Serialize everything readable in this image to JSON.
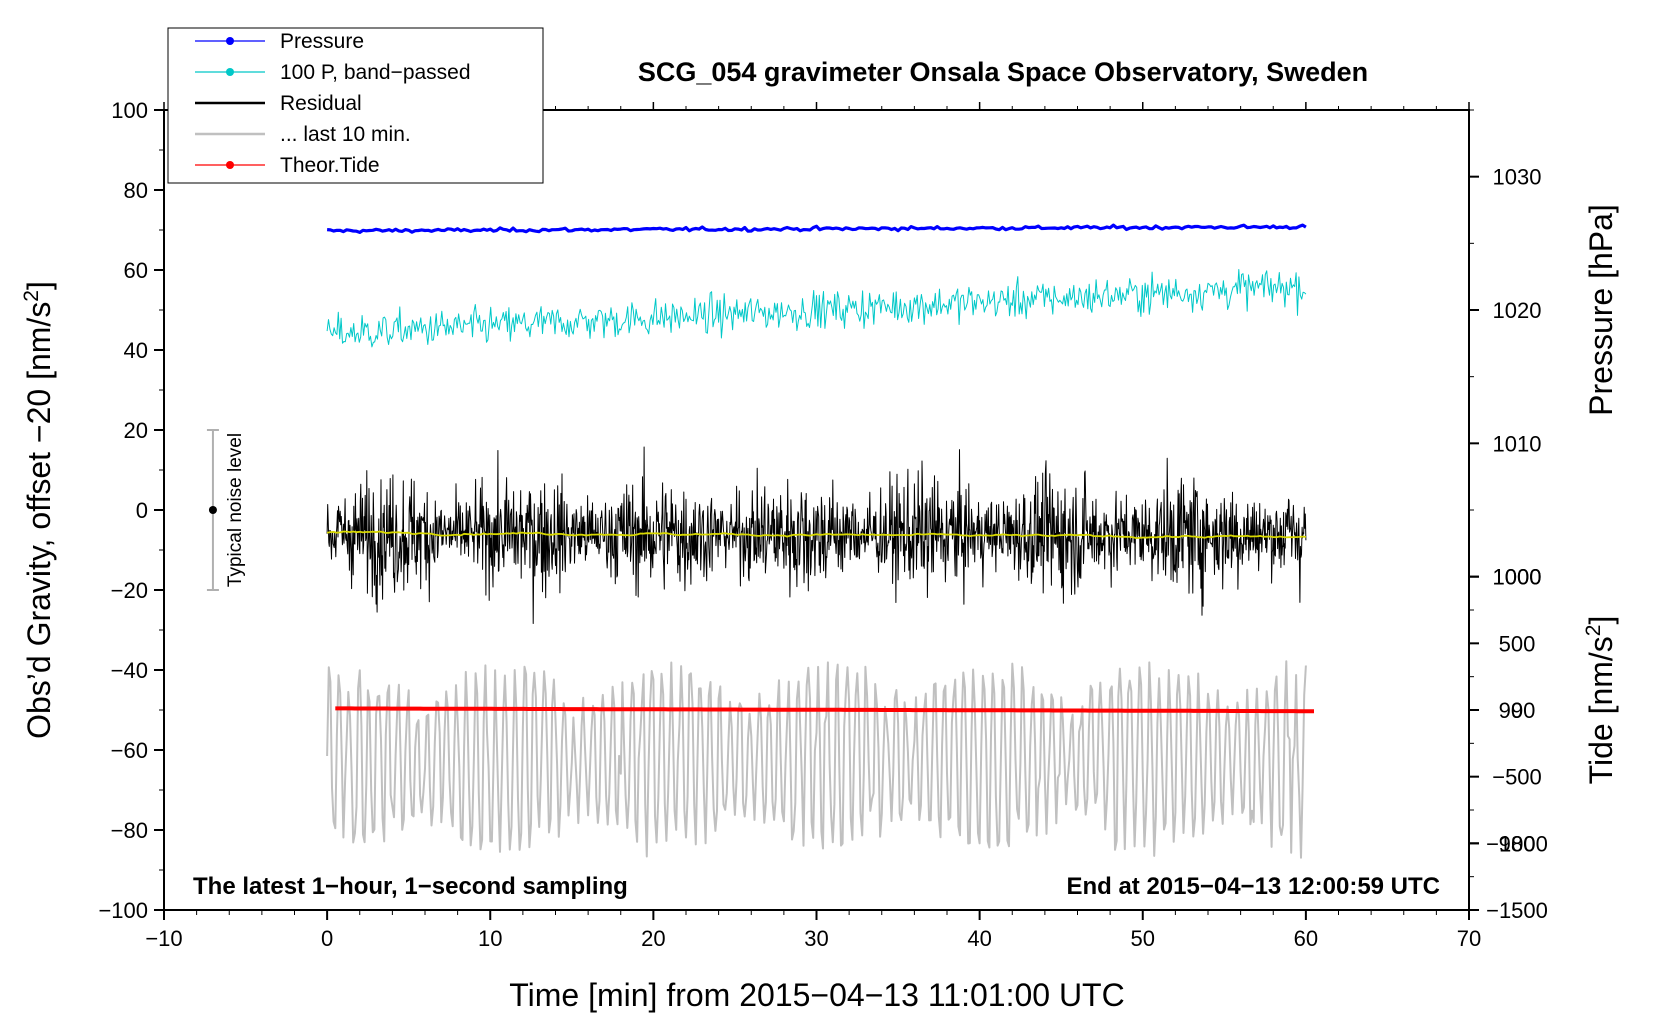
{
  "chart_data": {
    "type": "line",
    "title": "SCG_054 gravimeter Onsala Space Observatory, Sweden",
    "xlabel": "Time [min] from 2015−04−13 11:01:00 UTC",
    "ylabel_left": "Obs’d Gravity, offset −20 [nm/s",
    "ylabel_left_sup": "2",
    "ylabel_left_end": "]",
    "ylabel_pressure": "Pressure [hPa]",
    "ylabel_tide": "Tide [nm/s",
    "ylabel_tide_sup": "2",
    "ylabel_tide_end": "]",
    "xlim": [
      -10,
      70
    ],
    "ylim": [
      -100,
      100
    ],
    "x_ticks": [
      "−10",
      "0",
      "10",
      "20",
      "30",
      "40",
      "50",
      "60",
      "70"
    ],
    "x_tick_values": [
      -10,
      0,
      10,
      20,
      30,
      40,
      50,
      60,
      70
    ],
    "y_ticks": [
      "100",
      "80",
      "60",
      "40",
      "20",
      "0",
      "−20",
      "−40",
      "−60",
      "−80",
      "−100"
    ],
    "y_tick_values": [
      100,
      80,
      60,
      40,
      20,
      0,
      -20,
      -40,
      -60,
      -80,
      -100
    ],
    "pressure_ticks": [
      "1030",
      "1020",
      "1010",
      "1000",
      "990",
      "980"
    ],
    "pressure_tick_values": [
      1030,
      1020,
      1010,
      1000,
      990,
      980
    ],
    "pressure_axis_map": {
      "hpa_at_y100": 1035,
      "hpa_per_unit_y": 0.3
    },
    "tide_ticks": [
      "1000",
      "500",
      "0",
      "−500",
      "−1000",
      "−1500"
    ],
    "tide_tick_values": [
      1000,
      500,
      0,
      -500,
      -1000,
      -1500
    ],
    "tide_axis_map": {
      "tide_at_y100": 4500,
      "tide_per_unit_y": 30
    },
    "legend": [
      {
        "label": "Pressure",
        "color": "#0000ff",
        "marker": true
      },
      {
        "label": "100 P, band−passed",
        "color": "#00c8c8",
        "marker": true
      },
      {
        "label": "Residual",
        "color": "#000000",
        "marker": false
      },
      {
        "label": "... last 10 min.",
        "color": "#c0c0c0",
        "marker": false
      },
      {
        "label": "Theor.Tide",
        "color": "#ff0000",
        "marker": true
      }
    ],
    "annotations": {
      "left": "The latest 1−hour, 1−second sampling",
      "right": "End at 2015−04−13 12:00:59 UTC"
    },
    "noise_bar": {
      "label": "Typical noise level",
      "x": -7,
      "center": 0,
      "low": -20,
      "high": 20
    },
    "series": [
      {
        "name": "Pressure",
        "color": "#0000ff",
        "x_start": 0,
        "x_end": 60,
        "start": 69.8,
        "end": 70.8,
        "noise": 0.35,
        "lw": 3.2
      },
      {
        "name": "100 P, band−passed",
        "color": "#00c8c8",
        "x_start": 0,
        "x_end": 60,
        "start": 44,
        "end": 56,
        "noise": 3.6,
        "lw": 1.0
      },
      {
        "name": "Residual",
        "color": "#000000",
        "x_start": 0,
        "x_end": 60,
        "start": -6,
        "end": -6,
        "noise": 9.5,
        "lw": 1.0
      },
      {
        "name": "Residual mean",
        "color": "#d8d800",
        "x_start": 0,
        "x_end": 60,
        "start": -5.6,
        "end": -6.8,
        "noise": 0.4,
        "lw": 1.8
      },
      {
        "name": "... last 10 min.",
        "color": "#c0c0c0",
        "x_start": 0,
        "x_end": 60,
        "start": -62,
        "end": -62,
        "noise": 9,
        "lw": 2.0
      },
      {
        "name": "Theor.Tide",
        "color": "#ff0000",
        "x_start": 0.5,
        "x_end": 60.5,
        "start": -49.6,
        "end": -50.3,
        "noise": 0.0,
        "lw": 4.0
      }
    ]
  }
}
